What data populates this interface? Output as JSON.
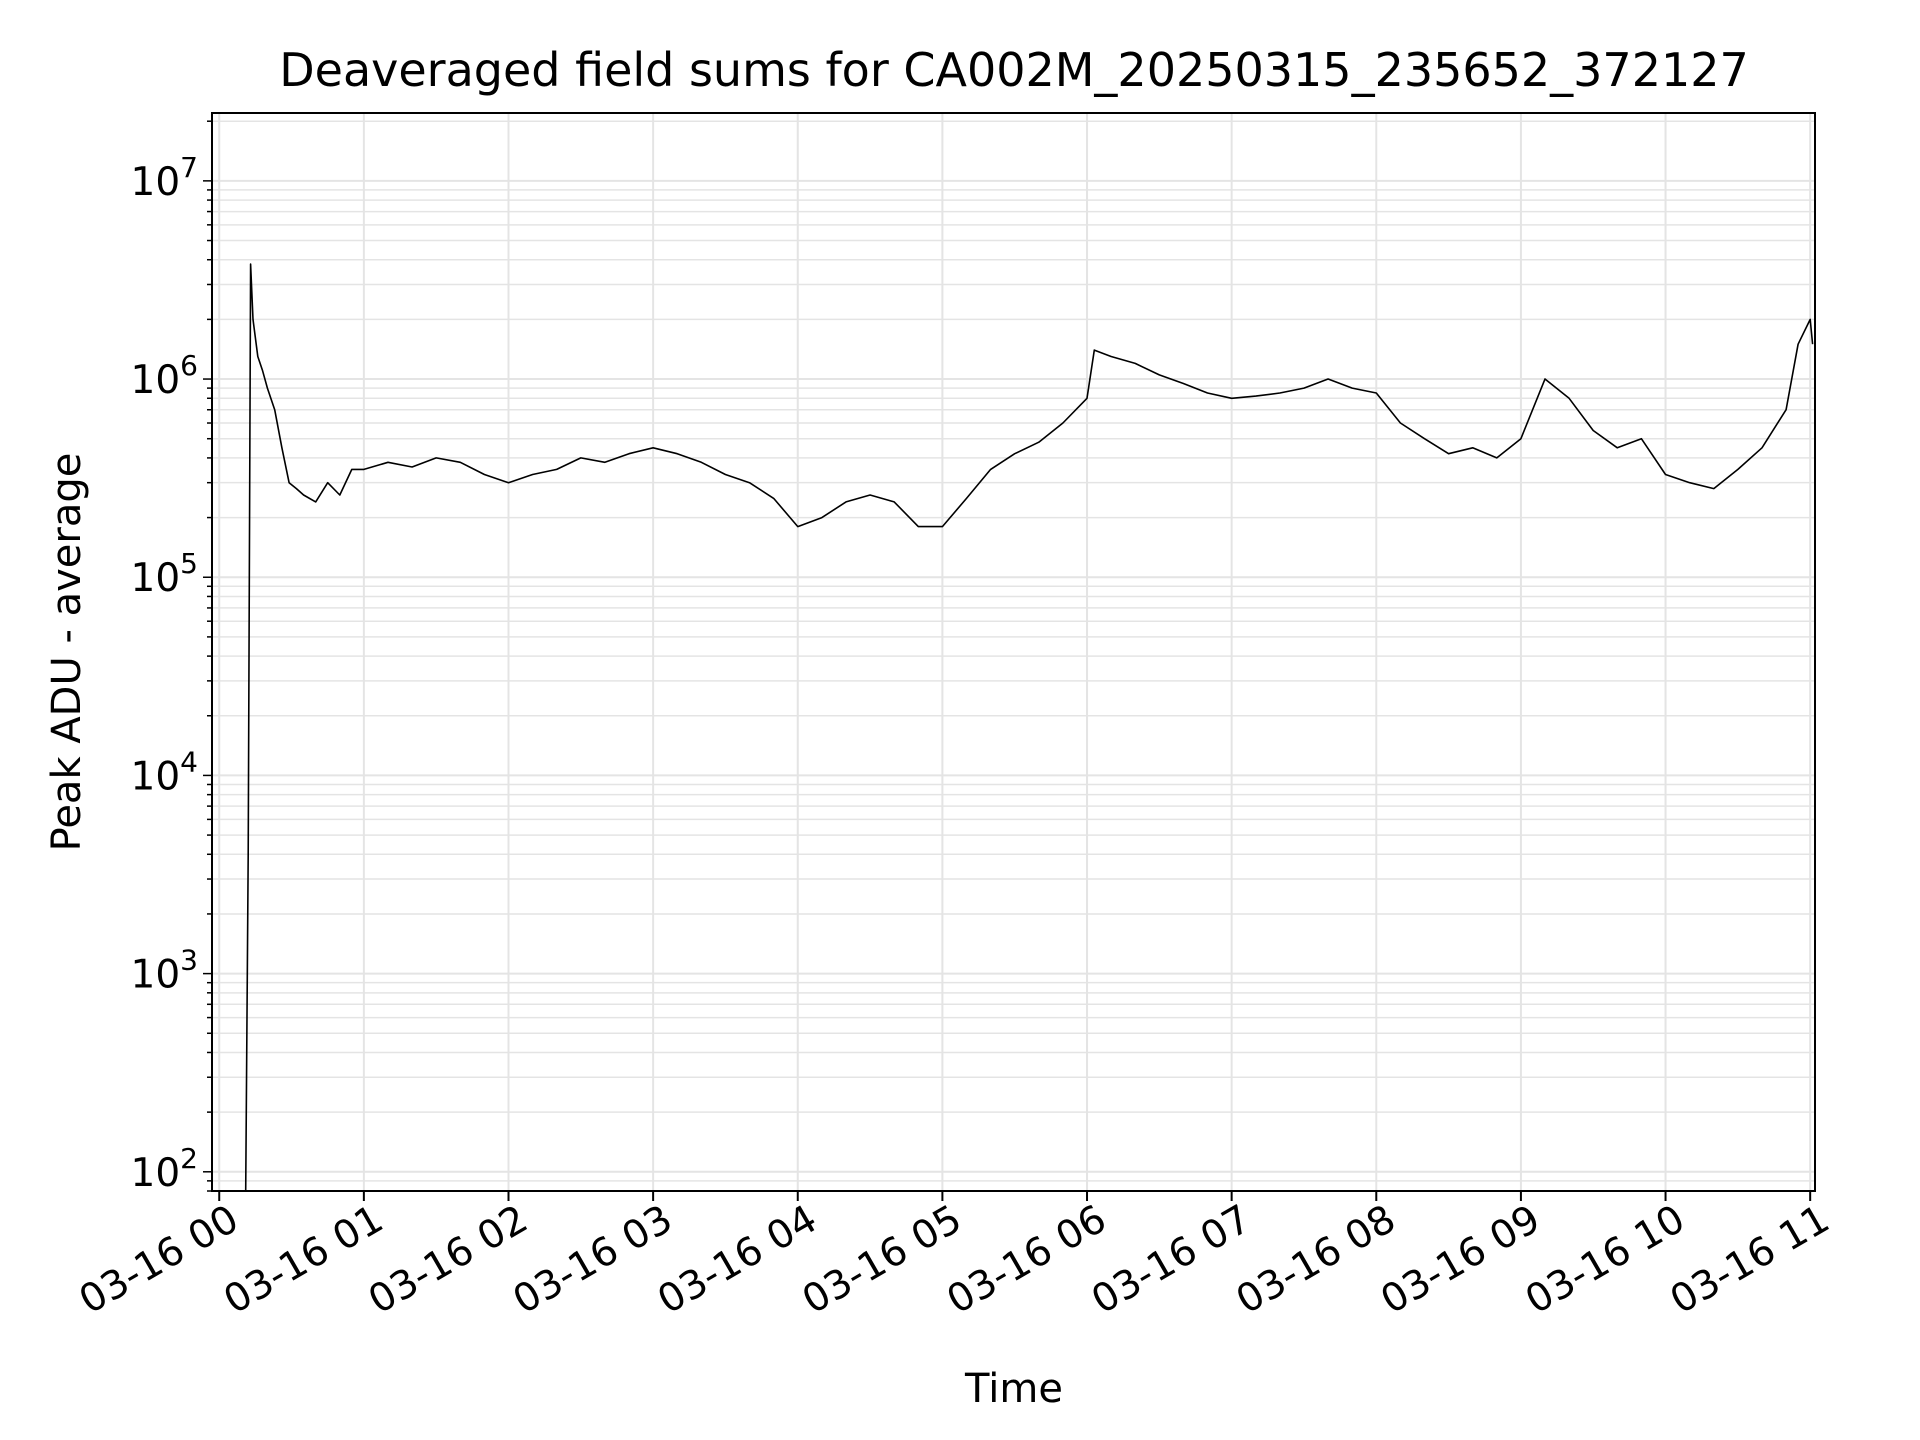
{
  "chart_data": {
    "type": "line",
    "title": "Deaveraged field sums for CA002M_20250315_235652_372127",
    "xlabel": "Time",
    "ylabel": "Peak ADU - average",
    "yscale": "log",
    "ylim": [
      80,
      22000000
    ],
    "xlim": [
      "2025-03-15 23:57",
      "2025-03-16 11:02"
    ],
    "grid": true,
    "line_color": "#000000",
    "grid_color": "#e4e4e4",
    "x_ticks": [
      {
        "label": "03-16 00",
        "value": "2025-03-16 00:00"
      },
      {
        "label": "03-16 01",
        "value": "2025-03-16 01:00"
      },
      {
        "label": "03-16 02",
        "value": "2025-03-16 02:00"
      },
      {
        "label": "03-16 03",
        "value": "2025-03-16 03:00"
      },
      {
        "label": "03-16 04",
        "value": "2025-03-16 04:00"
      },
      {
        "label": "03-16 05",
        "value": "2025-03-16 05:00"
      },
      {
        "label": "03-16 06",
        "value": "2025-03-16 06:00"
      },
      {
        "label": "03-16 07",
        "value": "2025-03-16 07:00"
      },
      {
        "label": "03-16 08",
        "value": "2025-03-16 08:00"
      },
      {
        "label": "03-16 09",
        "value": "2025-03-16 09:00"
      },
      {
        "label": "03-16 10",
        "value": "2025-03-16 10:00"
      },
      {
        "label": "03-16 11",
        "value": "2025-03-16 11:00"
      }
    ],
    "y_ticks": [
      {
        "base": "10",
        "exp": "2",
        "value": 100
      },
      {
        "base": "10",
        "exp": "3",
        "value": 1000
      },
      {
        "base": "10",
        "exp": "4",
        "value": 10000
      },
      {
        "base": "10",
        "exp": "5",
        "value": 100000
      },
      {
        "base": "10",
        "exp": "6",
        "value": 1000000
      },
      {
        "base": "10",
        "exp": "7",
        "value": 10000000
      }
    ],
    "series": [
      {
        "x": [
          "2025-03-16 00:11",
          "2025-03-16 00:12",
          "2025-03-16 00:13",
          "2025-03-16 00:14",
          "2025-03-16 00:16",
          "2025-03-16 00:18",
          "2025-03-16 00:20",
          "2025-03-16 00:23",
          "2025-03-16 00:26",
          "2025-03-16 00:29",
          "2025-03-16 00:32",
          "2025-03-16 00:35",
          "2025-03-16 00:40",
          "2025-03-16 00:45",
          "2025-03-16 00:50",
          "2025-03-16 00:55",
          "2025-03-16 01:00",
          "2025-03-16 01:10",
          "2025-03-16 01:20",
          "2025-03-16 01:30",
          "2025-03-16 01:40",
          "2025-03-16 01:50",
          "2025-03-16 02:00",
          "2025-03-16 02:10",
          "2025-03-16 02:20",
          "2025-03-16 02:30",
          "2025-03-16 02:40",
          "2025-03-16 02:50",
          "2025-03-16 03:00",
          "2025-03-16 03:10",
          "2025-03-16 03:20",
          "2025-03-16 03:30",
          "2025-03-16 03:40",
          "2025-03-16 03:50",
          "2025-03-16 04:00",
          "2025-03-16 04:10",
          "2025-03-16 04:20",
          "2025-03-16 04:30",
          "2025-03-16 04:40",
          "2025-03-16 04:50",
          "2025-03-16 05:00",
          "2025-03-16 05:10",
          "2025-03-16 05:20",
          "2025-03-16 05:30",
          "2025-03-16 05:40",
          "2025-03-16 05:50",
          "2025-03-16 06:00",
          "2025-03-16 06:03",
          "2025-03-16 06:10",
          "2025-03-16 06:20",
          "2025-03-16 06:30",
          "2025-03-16 06:40",
          "2025-03-16 06:50",
          "2025-03-16 07:00",
          "2025-03-16 07:10",
          "2025-03-16 07:20",
          "2025-03-16 07:30",
          "2025-03-16 07:40",
          "2025-03-16 07:50",
          "2025-03-16 08:00",
          "2025-03-16 08:10",
          "2025-03-16 08:20",
          "2025-03-16 08:30",
          "2025-03-16 08:40",
          "2025-03-16 08:50",
          "2025-03-16 09:00",
          "2025-03-16 09:10",
          "2025-03-16 09:20",
          "2025-03-16 09:30",
          "2025-03-16 09:40",
          "2025-03-16 09:50",
          "2025-03-16 10:00",
          "2025-03-16 10:10",
          "2025-03-16 10:20",
          "2025-03-16 10:30",
          "2025-03-16 10:40",
          "2025-03-16 10:50",
          "2025-03-16 10:55",
          "2025-03-16 11:00",
          "2025-03-16 11:01"
        ],
        "y": [
          80,
          4000,
          3800000,
          2000000,
          1300000,
          1100000,
          900000,
          700000,
          450000,
          300000,
          280000,
          260000,
          240000,
          300000,
          260000,
          350000,
          350000,
          380000,
          360000,
          400000,
          380000,
          330000,
          300000,
          330000,
          350000,
          400000,
          380000,
          420000,
          450000,
          420000,
          380000,
          330000,
          300000,
          250000,
          180000,
          200000,
          240000,
          260000,
          240000,
          180000,
          180000,
          250000,
          350000,
          420000,
          480000,
          600000,
          800000,
          1400000,
          1300000,
          1200000,
          1050000,
          950000,
          850000,
          800000,
          820000,
          850000,
          900000,
          1000000,
          900000,
          850000,
          600000,
          500000,
          420000,
          450000,
          400000,
          500000,
          1000000,
          800000,
          550000,
          450000,
          500000,
          330000,
          300000,
          280000,
          350000,
          450000,
          700000,
          1500000,
          2000000,
          1500000
        ]
      }
    ]
  }
}
